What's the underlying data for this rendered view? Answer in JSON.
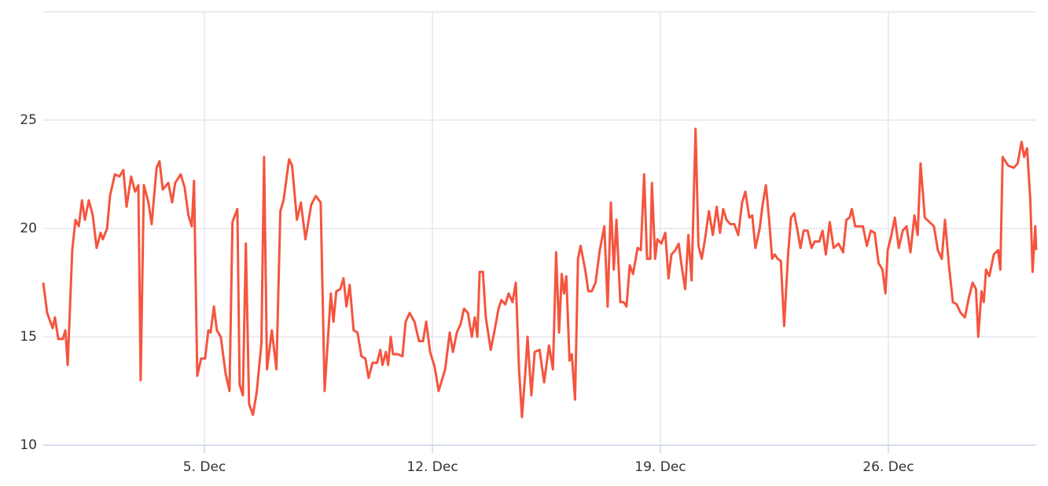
{
  "chart_data": {
    "type": "line",
    "color": "#f4553f",
    "grid": true,
    "xlim": [
      0.05,
      30.54
    ],
    "ylim": [
      10,
      30
    ],
    "xticks": [
      {
        "value": 5,
        "label": "5. Dec"
      },
      {
        "value": 12,
        "label": "12. Dec"
      },
      {
        "value": 19,
        "label": "19. Dec"
      },
      {
        "value": 26,
        "label": "26. Dec"
      }
    ],
    "yticks": [
      10,
      15,
      20,
      25
    ],
    "x": [
      0.05,
      0.17,
      0.34,
      0.41,
      0.51,
      0.65,
      0.73,
      0.8,
      0.94,
      1.04,
      1.14,
      1.24,
      1.33,
      1.45,
      1.57,
      1.69,
      1.81,
      1.88,
      2.01,
      2.1,
      2.25,
      2.39,
      2.51,
      2.61,
      2.75,
      2.87,
      2.97,
      3.04,
      3.14,
      3.28,
      3.38,
      3.53,
      3.62,
      3.72,
      3.89,
      4.01,
      4.1,
      4.27,
      4.39,
      4.51,
      4.61,
      4.68,
      4.78,
      4.9,
      5.02,
      5.12,
      5.19,
      5.29,
      5.38,
      5.5,
      5.65,
      5.77,
      5.86,
      6.01,
      6.08,
      6.18,
      6.27,
      6.37,
      6.49,
      6.61,
      6.75,
      6.83,
      6.92,
      7.07,
      7.21,
      7.33,
      7.43,
      7.6,
      7.69,
      7.84,
      7.96,
      8.1,
      8.28,
      8.42,
      8.57,
      8.69,
      8.88,
      8.96,
      9.05,
      9.17,
      9.27,
      9.36,
      9.46,
      9.58,
      9.7,
      9.82,
      9.94,
      10.04,
      10.16,
      10.3,
      10.4,
      10.47,
      10.57,
      10.64,
      10.72,
      10.79,
      10.94,
      11.08,
      11.18,
      11.3,
      11.45,
      11.59,
      11.71,
      11.81,
      11.93,
      12.07,
      12.19,
      12.39,
      12.53,
      12.63,
      12.75,
      12.87,
      12.97,
      13.09,
      13.21,
      13.3,
      13.38,
      13.45,
      13.55,
      13.64,
      13.79,
      13.91,
      14.03,
      14.12,
      14.24,
      14.34,
      14.46,
      14.56,
      14.66,
      14.75,
      14.85,
      14.92,
      15.04,
      15.14,
      15.29,
      15.43,
      15.58,
      15.7,
      15.8,
      15.89,
      15.97,
      16.04,
      16.11,
      16.21,
      16.28,
      16.38,
      16.47,
      16.55,
      16.69,
      16.79,
      16.89,
      17.01,
      17.14,
      17.28,
      17.38,
      17.48,
      17.57,
      17.65,
      17.77,
      17.87,
      17.96,
      18.06,
      18.16,
      18.3,
      18.4,
      18.5,
      18.59,
      18.69,
      18.74,
      18.84,
      18.91,
      19.03,
      19.15,
      19.25,
      19.34,
      19.46,
      19.56,
      19.66,
      19.76,
      19.86,
      19.96,
      20.08,
      20.17,
      20.27,
      20.37,
      20.49,
      20.61,
      20.73,
      20.83,
      20.93,
      21.03,
      21.15,
      21.27,
      21.39,
      21.51,
      21.61,
      21.73,
      21.82,
      21.92,
      22.05,
      22.14,
      22.24,
      22.34,
      22.43,
      22.51,
      22.6,
      22.7,
      22.8,
      22.92,
      23.01,
      23.11,
      23.21,
      23.3,
      23.4,
      23.52,
      23.64,
      23.74,
      23.88,
      23.98,
      24.08,
      24.2,
      24.32,
      24.47,
      24.61,
      24.71,
      24.81,
      24.88,
      24.98,
      25.1,
      25.22,
      25.34,
      25.46,
      25.58,
      25.7,
      25.82,
      25.91,
      25.98,
      26.08,
      26.2,
      26.32,
      26.44,
      26.56,
      26.68,
      26.8,
      26.9,
      26.99,
      27.12,
      27.26,
      27.4,
      27.52,
      27.64,
      27.74,
      27.86,
      27.98,
      28.1,
      28.22,
      28.35,
      28.47,
      28.59,
      28.69,
      28.76,
      28.86,
      28.93,
      29.0,
      29.1,
      29.24,
      29.37,
      29.44,
      29.51,
      29.68,
      29.85,
      29.97,
      30.09,
      30.17,
      30.26,
      30.36,
      30.43,
      30.51,
      30.54
    ],
    "values": [
      17.5,
      16.1,
      15.4,
      15.9,
      14.9,
      14.9,
      15.3,
      13.7,
      19.0,
      20.4,
      20.1,
      21.3,
      20.4,
      21.3,
      20.6,
      19.1,
      19.8,
      19.5,
      20.0,
      21.5,
      22.5,
      22.4,
      22.7,
      21.0,
      22.4,
      21.7,
      22.0,
      13.0,
      22.0,
      21.2,
      20.2,
      22.8,
      23.1,
      21.8,
      22.1,
      21.2,
      22.1,
      22.5,
      21.9,
      20.6,
      20.1,
      22.2,
      13.2,
      14.0,
      14.0,
      15.3,
      15.2,
      16.4,
      15.3,
      15.0,
      13.3,
      12.5,
      20.3,
      20.9,
      12.8,
      12.3,
      19.3,
      11.9,
      11.4,
      12.5,
      14.7,
      23.3,
      13.5,
      15.3,
      13.5,
      20.8,
      21.3,
      23.2,
      22.9,
      20.4,
      21.2,
      19.5,
      21.1,
      21.5,
      21.2,
      12.5,
      17.0,
      15.7,
      17.1,
      17.2,
      17.7,
      16.4,
      17.4,
      15.3,
      15.2,
      14.1,
      14.0,
      13.1,
      13.8,
      13.8,
      14.4,
      13.7,
      14.3,
      13.7,
      15.0,
      14.2,
      14.2,
      14.1,
      15.7,
      16.1,
      15.7,
      14.8,
      14.8,
      15.7,
      14.3,
      13.6,
      12.5,
      13.5,
      15.2,
      14.3,
      15.2,
      15.6,
      16.3,
      16.1,
      15.0,
      15.9,
      15.0,
      18.0,
      18.0,
      15.9,
      14.4,
      15.3,
      16.3,
      16.7,
      16.5,
      17.0,
      16.6,
      17.5,
      13.5,
      11.3,
      13.3,
      15.0,
      12.3,
      14.3,
      14.4,
      12.9,
      14.6,
      13.5,
      18.9,
      15.2,
      17.9,
      17.0,
      17.8,
      13.9,
      14.2,
      12.1,
      18.6,
      19.2,
      18.1,
      17.1,
      17.1,
      17.5,
      19.0,
      20.1,
      16.4,
      21.2,
      18.1,
      20.4,
      16.6,
      16.6,
      16.4,
      18.3,
      17.9,
      19.1,
      19.0,
      22.5,
      18.6,
      18.6,
      22.1,
      18.6,
      19.5,
      19.3,
      19.8,
      17.7,
      18.8,
      19.0,
      19.3,
      18.2,
      17.2,
      19.7,
      17.6,
      24.6,
      19.2,
      18.6,
      19.5,
      20.8,
      19.7,
      21.0,
      19.8,
      20.9,
      20.4,
      20.2,
      20.2,
      19.7,
      21.2,
      21.7,
      20.5,
      20.6,
      19.1,
      20.0,
      21.1,
      22.0,
      20.4,
      18.6,
      18.8,
      18.6,
      18.5,
      15.5,
      18.8,
      20.5,
      20.7,
      19.9,
      19.1,
      19.9,
      19.9,
      19.1,
      19.4,
      19.4,
      19.9,
      18.8,
      20.3,
      19.1,
      19.3,
      18.9,
      20.4,
      20.5,
      20.9,
      20.1,
      20.1,
      20.1,
      19.2,
      19.9,
      19.8,
      18.4,
      18.1,
      17.0,
      19.0,
      19.6,
      20.5,
      19.1,
      19.9,
      20.1,
      18.9,
      20.6,
      19.7,
      23.0,
      20.5,
      20.3,
      20.1,
      19.0,
      18.6,
      20.4,
      18.3,
      16.6,
      16.5,
      16.1,
      15.9,
      16.8,
      17.5,
      17.2,
      15.0,
      17.1,
      16.6,
      18.1,
      17.8,
      18.8,
      19.0,
      18.1,
      23.3,
      22.9,
      22.8,
      23.0,
      24.0,
      23.3,
      23.7,
      21.3,
      18.0,
      20.1,
      19.0
    ]
  }
}
